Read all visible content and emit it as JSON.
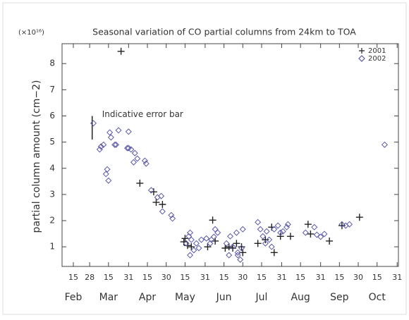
{
  "chart_data": {
    "type": "scatter",
    "title": "Seasonal variation of CO partial columns from 24km to TOA",
    "y_multiplier": "(×10¹⁶)",
    "ylabel": "partial column amount (cm−2)",
    "annotation": "Indicative error bar",
    "error_bar": {
      "x": 61,
      "value": 5.55,
      "error": 0.45
    },
    "legend": "top-right",
    "xlim": [
      37,
      305
    ],
    "ylim": [
      0.25,
      8.76
    ],
    "yticks": [
      1,
      2,
      3,
      4,
      5,
      6,
      7,
      8
    ],
    "xticks": [
      {
        "value": 46,
        "label": "15"
      },
      {
        "value": 59,
        "label": "28"
      },
      {
        "value": 74,
        "label": "15"
      },
      {
        "value": 90,
        "label": "31"
      },
      {
        "value": 105,
        "label": "15"
      },
      {
        "value": 120,
        "label": "30"
      },
      {
        "value": 135,
        "label": "15"
      },
      {
        "value": 151,
        "label": "31"
      },
      {
        "value": 166,
        "label": "15"
      },
      {
        "value": 181,
        "label": "30"
      },
      {
        "value": 196,
        "label": "15"
      },
      {
        "value": 212,
        "label": "31"
      },
      {
        "value": 227,
        "label": "15"
      },
      {
        "value": 243,
        "label": "31"
      },
      {
        "value": 258,
        "label": "15"
      },
      {
        "value": 273,
        "label": "30"
      },
      {
        "value": 288,
        "label": "15"
      },
      {
        "value": 304,
        "label": "31"
      }
    ],
    "months": [
      {
        "value": 46,
        "label": "Feb"
      },
      {
        "value": 74,
        "label": "Mar"
      },
      {
        "value": 105,
        "label": "Apr"
      },
      {
        "value": 135,
        "label": "May"
      },
      {
        "value": 166,
        "label": "Jun"
      },
      {
        "value": 196,
        "label": "Jul"
      },
      {
        "value": 227,
        "label": "Aug"
      },
      {
        "value": 258,
        "label": "Sep"
      },
      {
        "value": 288,
        "label": "Oct"
      }
    ],
    "series": [
      {
        "name": "2001",
        "marker": "plus",
        "color": "#222222",
        "x": [
          84,
          99,
          110,
          112,
          117,
          134,
          135,
          137,
          140,
          153,
          157,
          159,
          167,
          170,
          173,
          176,
          180,
          181,
          193,
          199,
          204,
          206,
          211,
          219,
          233,
          235,
          250,
          260,
          274
        ],
        "values": [
          8.47,
          3.43,
          3.1,
          2.7,
          2.62,
          1.19,
          1.32,
          1.05,
          1.0,
          1.0,
          2.02,
          1.22,
          0.95,
          1.0,
          0.95,
          1.13,
          1.0,
          0.78,
          1.13,
          1.27,
          1.75,
          0.78,
          1.4,
          1.4,
          1.86,
          1.49,
          1.22,
          1.81,
          2.13
        ]
      },
      {
        "name": "2002",
        "marker": "diamond",
        "color": "#5a5aa8",
        "x": [
          62,
          67,
          68,
          70,
          72,
          73,
          74,
          75,
          76,
          79,
          80,
          82,
          89,
          90,
          92,
          94,
          95,
          97,
          90,
          103,
          104,
          108,
          113,
          116,
          117,
          124,
          125,
          136,
          138,
          139,
          140,
          142,
          139,
          144,
          146,
          148,
          152,
          155,
          156,
          158,
          159,
          161,
          168,
          170,
          171,
          173,
          176,
          177,
          179,
          180,
          177,
          181,
          193,
          195,
          197,
          199,
          200,
          202,
          204,
          206,
          209,
          211,
          213,
          216,
          217,
          231,
          238,
          240,
          243,
          246,
          260,
          263,
          266,
          294
        ],
        "values": [
          5.72,
          4.72,
          4.83,
          4.9,
          3.78,
          3.96,
          3.53,
          5.37,
          5.18,
          4.9,
          4.9,
          5.45,
          4.77,
          4.77,
          4.72,
          4.23,
          4.58,
          4.37,
          5.4,
          4.29,
          4.18,
          3.16,
          2.89,
          2.94,
          2.35,
          2.21,
          2.08,
          1.13,
          1.4,
          1.54,
          1.27,
          0.87,
          0.68,
          1.13,
          0.95,
          1.27,
          1.32,
          1.13,
          1.27,
          1.38,
          1.67,
          1.54,
          1.13,
          0.68,
          1.4,
          1.0,
          1.54,
          0.78,
          0.51,
          0.95,
          0.68,
          1.67,
          1.94,
          1.67,
          1.4,
          1.13,
          1.59,
          1.27,
          1.0,
          1.67,
          1.81,
          1.54,
          1.59,
          1.75,
          1.86,
          1.54,
          1.75,
          1.46,
          1.38,
          1.49,
          1.86,
          1.81,
          1.86,
          4.9
        ]
      }
    ]
  }
}
